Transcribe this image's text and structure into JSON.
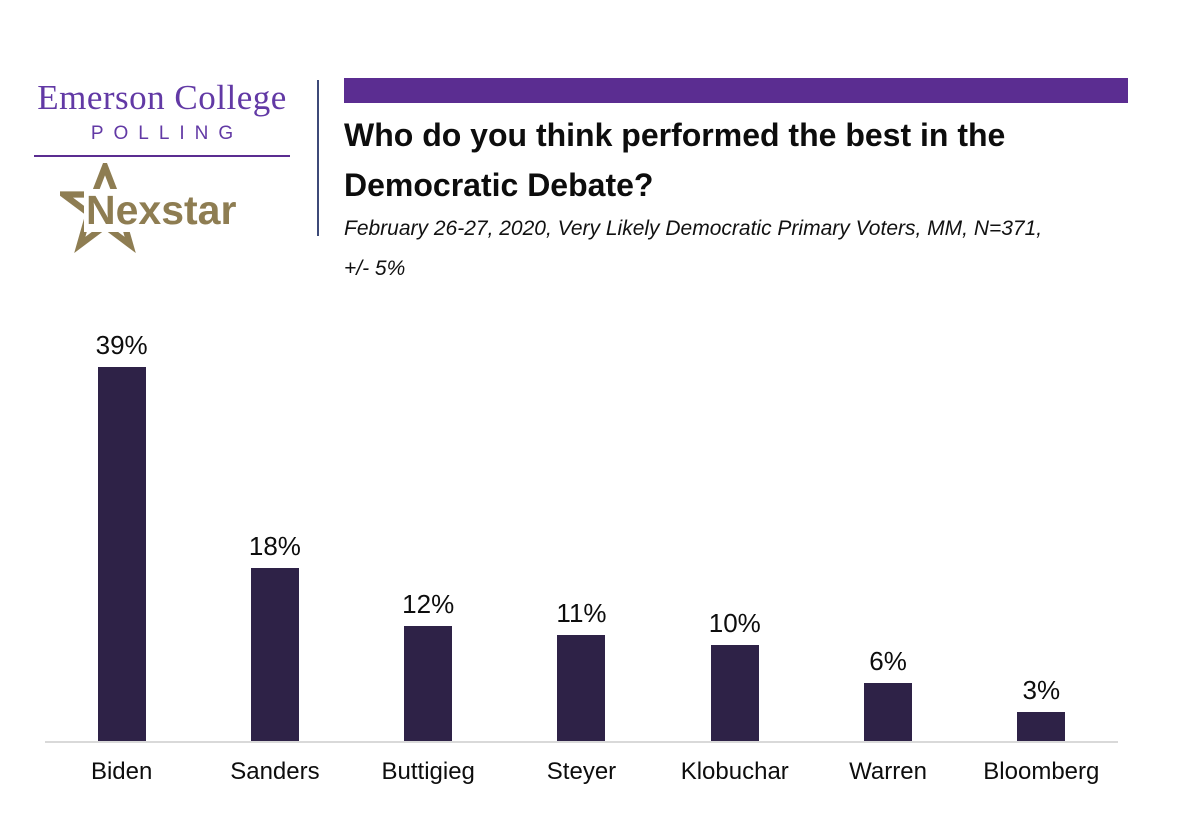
{
  "header": {
    "logo": {
      "org_line1": "Emerson College",
      "org_line2": "POLLING",
      "partner": "Nexstar"
    },
    "title_line1": "Who do you think performed the best in the",
    "title_line2": "Democratic Debate?",
    "subtitle_line1": "February 26-27, 2020, Very Likely Democratic Primary Voters, MM,  N=371,",
    "subtitle_line2": "+/- 5%"
  },
  "colors": {
    "accent_purple": "#5b2d91",
    "logo_purple": "#6239a5",
    "nexstar_gold": "#8e7d52",
    "divider_blue": "#3d4a78",
    "bar_fill": "#2e2247",
    "baseline_gray": "#d9d9d9"
  },
  "chart_data": {
    "type": "bar",
    "title": "Who do you think performed the best in the Democratic Debate?",
    "subtitle": "February 26-27, 2020, Very Likely Democratic Primary Voters, MM,  N=371, +/- 5%",
    "categories": [
      "Biden",
      "Sanders",
      "Buttigieg",
      "Steyer",
      "Klobuchar",
      "Warren",
      "Bloomberg"
    ],
    "values": [
      39,
      18,
      12,
      11,
      10,
      6,
      3
    ],
    "data_labels": [
      "39%",
      "18%",
      "12%",
      "11%",
      "10%",
      "6%",
      "3%"
    ],
    "xlabel": "",
    "ylabel": "",
    "ylim": [
      0,
      40
    ],
    "grid": false,
    "legend": false,
    "bar_color": "#2e2247"
  }
}
